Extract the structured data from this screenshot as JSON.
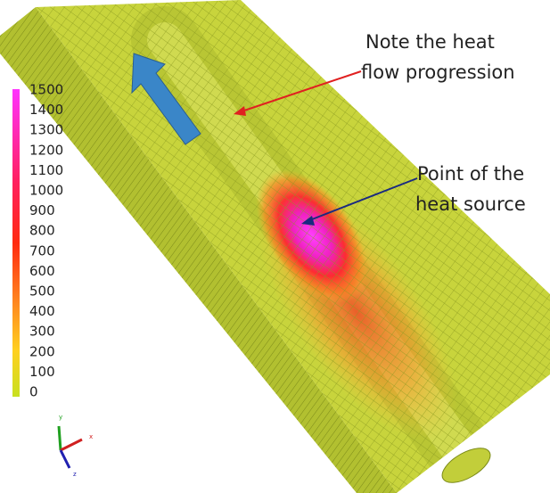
{
  "colorbar": {
    "labels": [
      "1500",
      "1400",
      "1300",
      "1200",
      "1100",
      "1000",
      "900",
      "800",
      "700",
      "600",
      "500",
      "400",
      "300",
      "200",
      "100",
      "0"
    ]
  },
  "annotations": {
    "heat_flow": [
      "Note the heat",
      "flow progression"
    ],
    "heat_source": [
      "Point of the",
      "heat source"
    ]
  },
  "axes": {
    "y": "y",
    "x": "x",
    "z": "z"
  }
}
